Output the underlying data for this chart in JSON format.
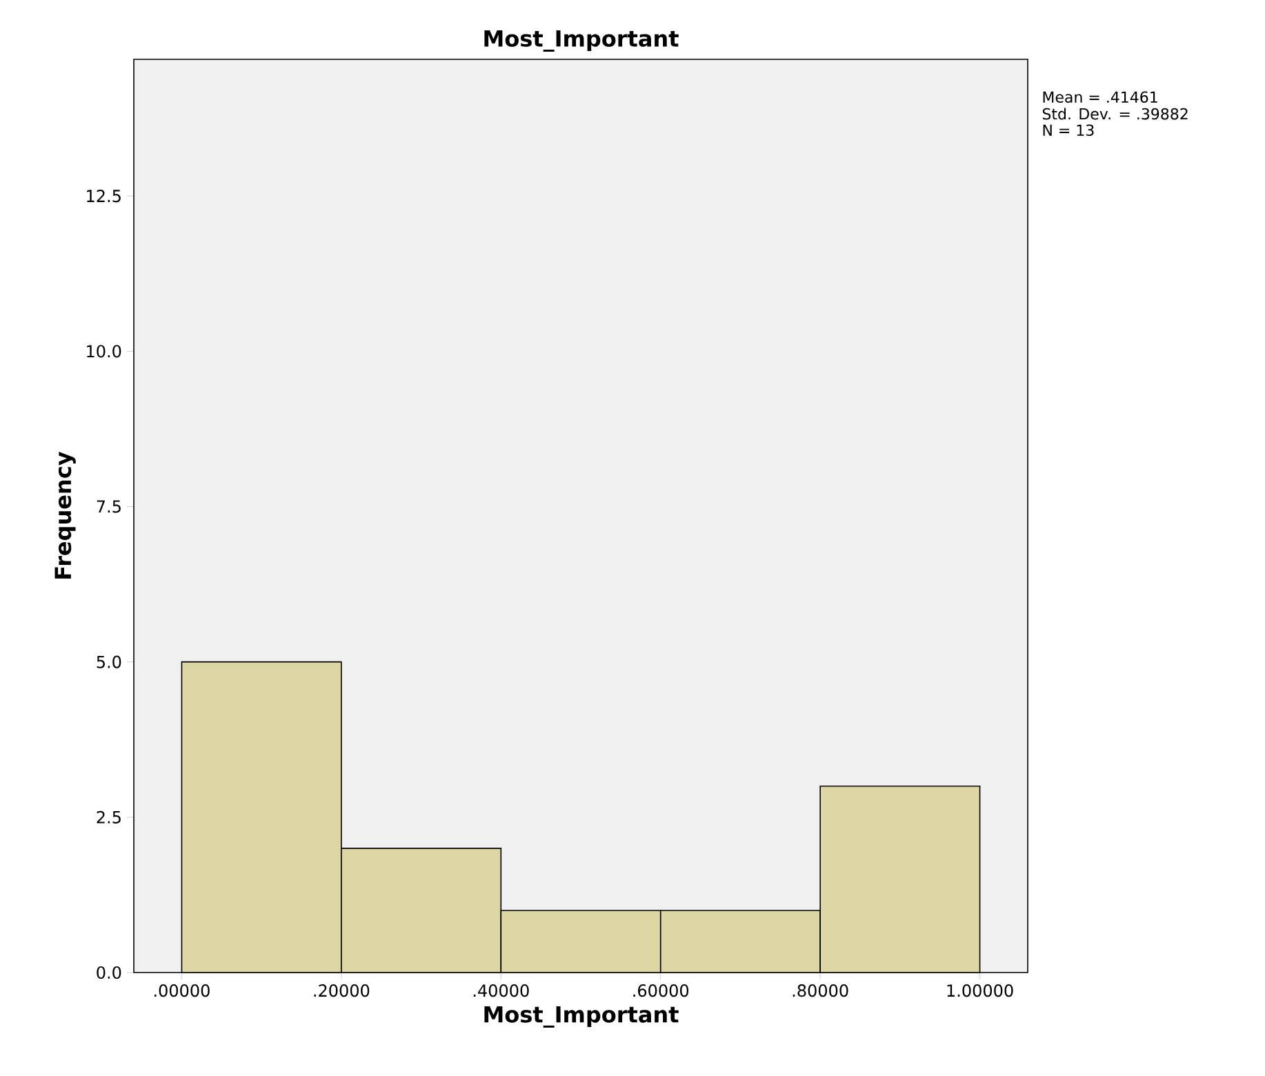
{
  "chart_data": {
    "type": "histogram",
    "title": "Most_Important",
    "xlabel": "Most_Important",
    "ylabel": "Frequency",
    "bins": [
      0,
      0.2,
      0.4,
      0.6,
      0.8,
      1.0
    ],
    "values": [
      5,
      2,
      1,
      1,
      3
    ],
    "color": "#dcd6a5",
    "xlim": [
      -0.06,
      1.06
    ],
    "ylim": [
      0,
      14.7
    ],
    "xticks": [
      {
        "value": 0,
        "label": ".00000"
      },
      {
        "value": 0.2,
        "label": ".20000"
      },
      {
        "value": 0.4,
        "label": ".40000"
      },
      {
        "value": 0.6,
        "label": ".60000"
      },
      {
        "value": 0.8,
        "label": ".80000"
      },
      {
        "value": 1.0,
        "label": "1.00000"
      }
    ],
    "yticks": [
      {
        "value": 0,
        "label": "0.0"
      },
      {
        "value": 2.5,
        "label": "2.5"
      },
      {
        "value": 5,
        "label": "5.0"
      },
      {
        "value": 7.5,
        "label": "7.5"
      },
      {
        "value": 10,
        "label": "10.0"
      },
      {
        "value": 12.5,
        "label": "12.5"
      }
    ],
    "annotations": [
      "Mean = .41461",
      "Std. Dev. = .39882",
      "N = 13"
    ]
  }
}
